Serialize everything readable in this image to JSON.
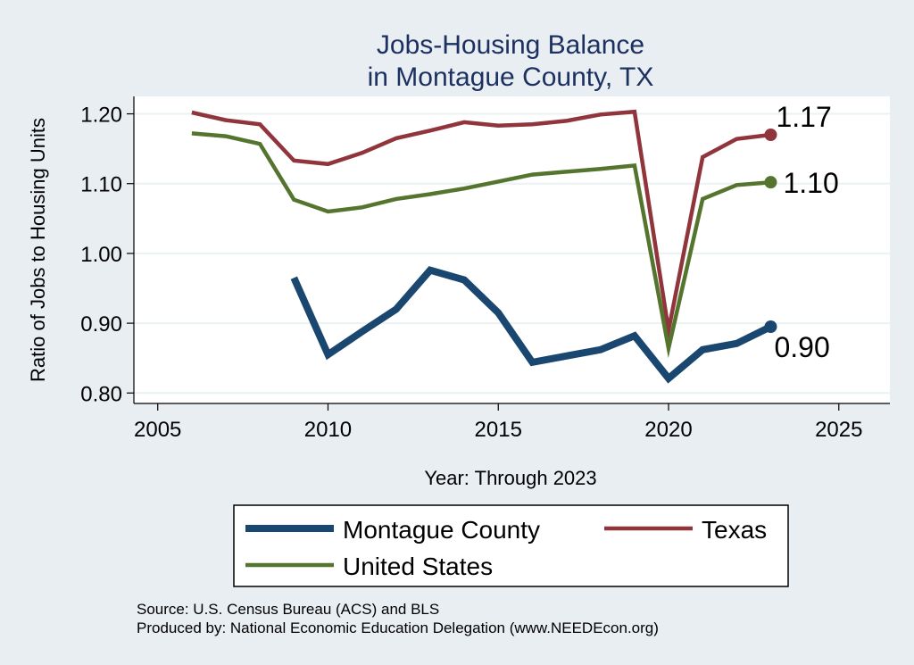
{
  "chart_data": {
    "type": "line",
    "title_line1": "Jobs-Housing Balance",
    "title_line2": "in Montague County, TX",
    "xlabel": "Year: Through 2023",
    "ylabel": "Ratio of Jobs to Housing Units",
    "xlim": [
      2004.3,
      2026.5
    ],
    "ylim": [
      0.785,
      1.225
    ],
    "xticks": [
      2005,
      2010,
      2015,
      2020,
      2025
    ],
    "xtick_labels": [
      "2005",
      "2010",
      "2015",
      "2020",
      "2025"
    ],
    "yticks": [
      0.8,
      0.9,
      1.0,
      1.1,
      1.2
    ],
    "ytick_labels": [
      "0.80",
      "0.90",
      "1.00",
      "1.10",
      "1.20"
    ],
    "grid": true,
    "series": [
      {
        "name": "Montague County",
        "color": "#1a476f",
        "width": 8,
        "x": [
          2009,
          2010,
          2011,
          2012,
          2013,
          2014,
          2015,
          2016,
          2017,
          2018,
          2019,
          2020,
          2021,
          2022,
          2023
        ],
        "values": [
          0.965,
          0.855,
          0.888,
          0.92,
          0.976,
          0.962,
          0.915,
          0.844,
          0.853,
          0.862,
          0.882,
          0.821,
          0.862,
          0.871,
          0.895
        ],
        "end_label": "0.90"
      },
      {
        "name": "Texas",
        "color": "#90353b",
        "width": 4.5,
        "x": [
          2006,
          2007,
          2008,
          2009,
          2010,
          2011,
          2012,
          2013,
          2014,
          2015,
          2016,
          2017,
          2018,
          2019,
          2020,
          2021,
          2022,
          2023
        ],
        "values": [
          1.202,
          1.191,
          1.185,
          1.133,
          1.128,
          1.144,
          1.165,
          1.176,
          1.188,
          1.183,
          1.185,
          1.19,
          1.199,
          1.203,
          0.89,
          1.138,
          1.164,
          1.17
        ],
        "end_label": "1.17"
      },
      {
        "name": "United States",
        "color": "#55752f",
        "width": 4.5,
        "x": [
          2006,
          2007,
          2008,
          2009,
          2010,
          2011,
          2012,
          2013,
          2014,
          2015,
          2016,
          2017,
          2018,
          2019,
          2020,
          2021,
          2022,
          2023
        ],
        "values": [
          1.172,
          1.168,
          1.157,
          1.077,
          1.06,
          1.066,
          1.078,
          1.085,
          1.093,
          1.103,
          1.113,
          1.117,
          1.121,
          1.126,
          0.864,
          1.078,
          1.098,
          1.102
        ],
        "end_label": "1.10"
      }
    ],
    "legend": [
      "Montague County",
      "Texas",
      "United States"
    ]
  },
  "footer": {
    "source": "Source: U.S. Census Bureau (ACS) and BLS",
    "produced_by": "Produced by: National Economic Education Delegation (www.NEEDEcon.org)"
  }
}
